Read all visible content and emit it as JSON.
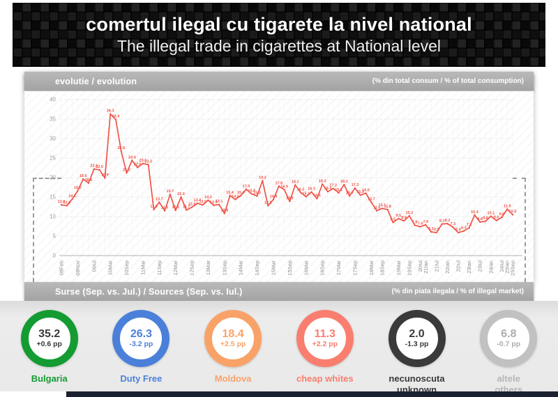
{
  "header": {
    "title": "comertul ilegal cu tigarete la nivel national",
    "subtitle": "The illegal trade in cigarettes at National level"
  },
  "evolution_bar": {
    "left": "evolutie / evolution",
    "right": "(% din total consum / % of total consumption)"
  },
  "sources_bar": {
    "left": "Surse (Sep. vs. Jul.) / Sources (Sep. vs. Iul.)",
    "right": "(% din piata ilegala / % of illegal market)"
  },
  "chart_data": {
    "type": "line",
    "title": "evolutie / evolution",
    "ylabel": "% din total consum / % of total consumption",
    "ylim": [
      0,
      40
    ],
    "yticks": [
      0,
      5,
      10,
      15,
      20,
      25,
      30,
      35,
      40
    ],
    "grid": true,
    "line_color": "#EF5246",
    "x_tick_labels": [
      "08Feb",
      "08Nov",
      "09Iul",
      "10Mar",
      "10Sep",
      "11Mar",
      "11Sep",
      "12Mar",
      "12Sep",
      "13Mar",
      "13Sep",
      "14Mar",
      "14Sep",
      "15Mar",
      "15Sep",
      "16Mar",
      "16Sep",
      "17Mar",
      "17Sep",
      "18Mar",
      "18Sep",
      "19Mar",
      "19Sep",
      "20Iul",
      "21Ian",
      "21Iul",
      "22Ian",
      "22Iul",
      "23Ian",
      "23Iul",
      "24Ian",
      "24Iul",
      "25Ian",
      "25Sep"
    ],
    "points": [
      {
        "v": 13.0,
        "tick": "08Feb"
      },
      {
        "v": 12.8
      },
      {
        "v": 14.5
      },
      {
        "v": 16.6,
        "tick": "08Nov"
      },
      {
        "v": 19.6
      },
      {
        "v": 18.6
      },
      {
        "v": 22.2,
        "tick": "09Iul"
      },
      {
        "v": 22.0
      },
      {
        "v": 19.9
      },
      {
        "v": 36.3,
        "tick": "10Mar"
      },
      {
        "v": 34.9
      },
      {
        "v": 26.8
      },
      {
        "v": 21.2,
        "tick": "10Sep"
      },
      {
        "v": 24.4
      },
      {
        "v": 22.6
      },
      {
        "v": 23.6,
        "tick": "11Mar"
      },
      {
        "v": 23.3
      },
      {
        "v": 11.8
      },
      {
        "v": 13.7,
        "tick": "11Sep"
      },
      {
        "v": 11.5
      },
      {
        "v": 15.7
      },
      {
        "v": 11.6,
        "tick": "12Mar"
      },
      {
        "v": 15.0
      },
      {
        "v": 11.7
      },
      {
        "v": 12.4,
        "tick": "12Sep"
      },
      {
        "v": 13.4
      },
      {
        "v": 13.0
      },
      {
        "v": 14.2,
        "tick": "13Mar"
      },
      {
        "v": 12.9
      },
      {
        "v": 13.1
      },
      {
        "v": 10.8,
        "tick": "13Sep"
      },
      {
        "v": 15.4
      },
      {
        "v": 14.4
      },
      {
        "v": 15.4,
        "tick": "14Mar"
      },
      {
        "v": 17.0
      },
      {
        "v": 15.8
      },
      {
        "v": 15.3,
        "tick": "14Sep"
      },
      {
        "v": 19.2
      },
      {
        "v": 12.8
      },
      {
        "v": 14.4,
        "tick": "15Mar"
      },
      {
        "v": 17.8
      },
      {
        "v": 16.9
      },
      {
        "v": 13.9,
        "tick": "15Sep"
      },
      {
        "v": 18.1
      },
      {
        "v": 16.2
      },
      {
        "v": 15.1,
        "tick": "16Mar"
      },
      {
        "v": 16.3
      },
      {
        "v": 14.6
      },
      {
        "v": 18.3,
        "tick": "16Sep"
      },
      {
        "v": 16.4
      },
      {
        "v": 17.2
      },
      {
        "v": 16.1,
        "tick": "17Mar"
      },
      {
        "v": 18.2
      },
      {
        "v": 15.3
      },
      {
        "v": 17.3,
        "tick": "17Sep"
      },
      {
        "v": 15.5
      },
      {
        "v": 16.0
      },
      {
        "v": 13.7,
        "tick": "18Mar"
      },
      {
        "v": 11.5
      },
      {
        "v": 12.1,
        "tick": "18Sep"
      },
      {
        "v": 11.8
      },
      {
        "v": 8.5
      },
      {
        "v": 9.5,
        "tick": "19Mar"
      },
      {
        "v": 8.9
      },
      {
        "v": 10.2,
        "tick": "19Sep"
      },
      {
        "v": 7.8
      },
      {
        "v": 7.4,
        "tick": "20Iul"
      },
      {
        "v": 7.9,
        "tick": "21Ian"
      },
      {
        "v": 6.1
      },
      {
        "v": 5.9,
        "tick": "21Iul"
      },
      {
        "v": 8.1
      },
      {
        "v": 8.2,
        "tick": "22Ian"
      },
      {
        "v": 7.3
      },
      {
        "v": 5.9,
        "tick": "22Iul"
      },
      {
        "v": 6.3
      },
      {
        "v": 7.1,
        "tick": "23Ian"
      },
      {
        "v": 10.4
      },
      {
        "v": 8.6,
        "tick": "23Iul"
      },
      {
        "v": 8.8
      },
      {
        "v": 10.1,
        "tick": "24Ian"
      },
      {
        "v": 9.0
      },
      {
        "v": 9.8,
        "tick": "24Iul"
      },
      {
        "v": 11.9,
        "tick": "25Ian"
      },
      {
        "v": 10.5,
        "tick": "25Sep"
      }
    ]
  },
  "sources": [
    {
      "name": "bulgaria",
      "line1": "Bulgaria",
      "line2": "",
      "value": "35.2",
      "delta": "+0.6 pp",
      "ring_color": "#149B32",
      "label_color": "#149B32",
      "value_color": "#3A3A3A"
    },
    {
      "name": "duty-free",
      "line1": "Duty Free",
      "line2": "",
      "value": "26.3",
      "delta": "-3.2 pp",
      "ring_color": "#4A80D9",
      "label_color": "#4A80D9",
      "value_color": "#4A80D9"
    },
    {
      "name": "moldova",
      "line1": "Moldova",
      "line2": "",
      "value": "18.4",
      "delta": "+2.5 pp",
      "ring_color": "#F9A268",
      "label_color": "#F9A268",
      "value_color": "#F9A268"
    },
    {
      "name": "cheap-whites",
      "line1": "cheap whites",
      "line2": "",
      "value": "11.3",
      "delta": "+2.2 pp",
      "ring_color": "#F97E6F",
      "label_color": "#F97E6F",
      "value_color": "#F97E6F"
    },
    {
      "name": "necunoscuta-unknown",
      "line1": "necunoscuta",
      "line2": "unknown",
      "value": "2.0",
      "delta": "-1.3 pp",
      "ring_color": "#3A3A3A",
      "label_color": "#3A3A3A",
      "value_color": "#3A3A3A"
    },
    {
      "name": "altele-others",
      "line1": "altele",
      "line2": "others",
      "value": "6.8",
      "delta": "-0.7 pp",
      "ring_color": "#C1C1C1",
      "label_color": "#B5B5B5",
      "value_color": "#ADADAD"
    }
  ]
}
